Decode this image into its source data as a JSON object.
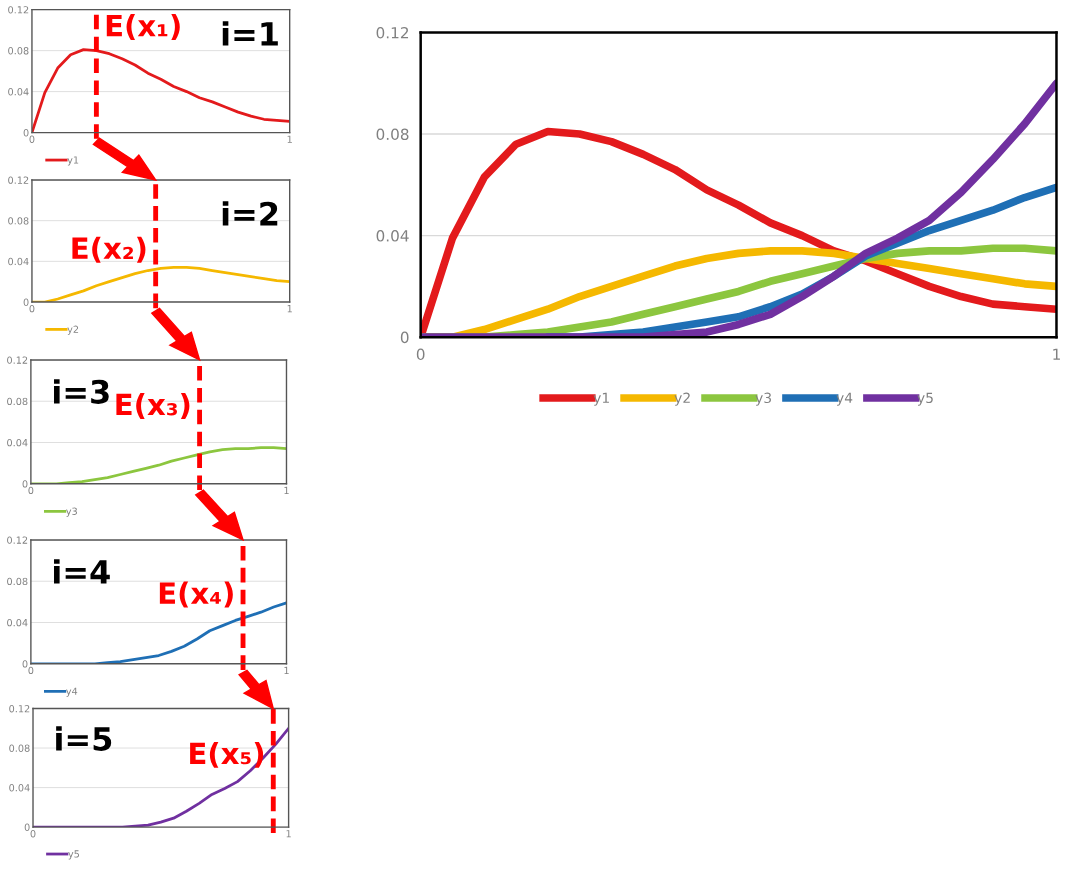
{
  "chart_data": [
    {
      "type": "line",
      "x": [
        0,
        0.05,
        0.1,
        0.15,
        0.2,
        0.25,
        0.3,
        0.35,
        0.4,
        0.45,
        0.5,
        0.55,
        0.6,
        0.65,
        0.7,
        0.75,
        0.8,
        0.85,
        0.9,
        0.95,
        1
      ],
      "xlim": [
        0,
        1
      ],
      "xticks": [
        0,
        1
      ],
      "ylim": [
        0,
        0.12
      ],
      "yticks": [
        0,
        0.04,
        0.08,
        0.12
      ],
      "grid": "y",
      "legend": "bottom",
      "annotations": [
        "i=1"
      ],
      "series": [
        {
          "name": "y1",
          "color": "#e31a1c",
          "values": [
            0,
            0.039,
            0.063,
            0.076,
            0.081,
            0.08,
            0.077,
            0.072,
            0.066,
            0.058,
            0.052,
            0.045,
            0.04,
            0.034,
            0.03,
            0.025,
            0.02,
            0.016,
            0.013,
            0.012,
            0.011
          ]
        }
      ],
      "ref_lines": [
        {
          "axis": "x",
          "value": 0.25,
          "label": "E(x₁)",
          "color": "#ff0000",
          "line_style": "dashed"
        }
      ]
    },
    {
      "type": "line",
      "x": [
        0,
        0.05,
        0.1,
        0.15,
        0.2,
        0.25,
        0.3,
        0.35,
        0.4,
        0.45,
        0.5,
        0.55,
        0.6,
        0.65,
        0.7,
        0.75,
        0.8,
        0.85,
        0.9,
        0.95,
        1
      ],
      "xlim": [
        0,
        1
      ],
      "xticks": [
        0,
        1
      ],
      "ylim": [
        0,
        0.12
      ],
      "yticks": [
        0,
        0.04,
        0.08,
        0.12
      ],
      "grid": "y",
      "legend": "bottom",
      "annotations": [
        "i=2"
      ],
      "series": [
        {
          "name": "y2",
          "color": "#f5b800",
          "values": [
            0,
            0,
            0.003,
            0.007,
            0.011,
            0.016,
            0.02,
            0.024,
            0.028,
            0.031,
            0.033,
            0.034,
            0.034,
            0.033,
            0.031,
            0.029,
            0.027,
            0.025,
            0.023,
            0.021,
            0.02
          ]
        }
      ],
      "ref_lines": [
        {
          "axis": "x",
          "value": 0.48,
          "label": "E(x₂)",
          "color": "#ff0000",
          "line_style": "dashed"
        }
      ]
    },
    {
      "type": "line",
      "x": [
        0,
        0.05,
        0.1,
        0.15,
        0.2,
        0.25,
        0.3,
        0.35,
        0.4,
        0.45,
        0.5,
        0.55,
        0.6,
        0.65,
        0.7,
        0.75,
        0.8,
        0.85,
        0.9,
        0.95,
        1
      ],
      "xlim": [
        0,
        1
      ],
      "xticks": [
        0,
        1
      ],
      "ylim": [
        0,
        0.12
      ],
      "yticks": [
        0,
        0.04,
        0.08,
        0.12
      ],
      "grid": "y",
      "legend": "bottom",
      "annotations": [
        "i=3"
      ],
      "series": [
        {
          "name": "y3",
          "color": "#8cc63f",
          "values": [
            0,
            0,
            0,
            0.001,
            0.002,
            0.004,
            0.006,
            0.009,
            0.012,
            0.015,
            0.018,
            0.022,
            0.025,
            0.028,
            0.031,
            0.033,
            0.034,
            0.034,
            0.035,
            0.035,
            0.034
          ]
        }
      ],
      "ref_lines": [
        {
          "axis": "x",
          "value": 0.66,
          "label": "E(x₃)",
          "color": "#ff0000",
          "line_style": "dashed"
        }
      ]
    },
    {
      "type": "line",
      "x": [
        0,
        0.05,
        0.1,
        0.15,
        0.2,
        0.25,
        0.3,
        0.35,
        0.4,
        0.45,
        0.5,
        0.55,
        0.6,
        0.65,
        0.7,
        0.75,
        0.8,
        0.85,
        0.9,
        0.95,
        1
      ],
      "xlim": [
        0,
        1
      ],
      "xticks": [
        0,
        1
      ],
      "ylim": [
        0,
        0.12
      ],
      "yticks": [
        0,
        0.04,
        0.08,
        0.12
      ],
      "grid": "y",
      "legend": "bottom",
      "annotations": [
        "i=4"
      ],
      "series": [
        {
          "name": "y4",
          "color": "#1f6fb5",
          "values": [
            0,
            0,
            0,
            0,
            0,
            0,
            0.001,
            0.002,
            0.004,
            0.006,
            0.008,
            0.012,
            0.017,
            0.024,
            0.032,
            0.037,
            0.042,
            0.046,
            0.05,
            0.055,
            0.059
          ]
        }
      ],
      "ref_lines": [
        {
          "axis": "x",
          "value": 0.83,
          "label": "E(x₄)",
          "color": "#ff0000",
          "line_style": "dashed"
        }
      ]
    },
    {
      "type": "line",
      "x": [
        0,
        0.05,
        0.1,
        0.15,
        0.2,
        0.25,
        0.3,
        0.35,
        0.4,
        0.45,
        0.5,
        0.55,
        0.6,
        0.65,
        0.7,
        0.75,
        0.8,
        0.85,
        0.9,
        0.95,
        1
      ],
      "xlim": [
        0,
        1
      ],
      "xticks": [
        0,
        1
      ],
      "ylim": [
        0,
        0.12
      ],
      "yticks": [
        0,
        0.04,
        0.08,
        0.12
      ],
      "grid": "y",
      "legend": "bottom",
      "annotations": [
        "i=5"
      ],
      "series": [
        {
          "name": "y5",
          "color": "#7030a0",
          "values": [
            0,
            0,
            0,
            0,
            0,
            0,
            0,
            0,
            0.001,
            0.002,
            0.005,
            0.009,
            0.016,
            0.024,
            0.033,
            0.039,
            0.046,
            0.057,
            0.07,
            0.084,
            0.1
          ]
        }
      ],
      "ref_lines": [
        {
          "axis": "x",
          "value": 0.94,
          "label": "E(x₅)",
          "color": "#ff0000",
          "line_style": "dashed"
        }
      ]
    },
    {
      "type": "line",
      "x": [
        0,
        0.05,
        0.1,
        0.15,
        0.2,
        0.25,
        0.3,
        0.35,
        0.4,
        0.45,
        0.5,
        0.55,
        0.6,
        0.65,
        0.7,
        0.75,
        0.8,
        0.85,
        0.9,
        0.95,
        1
      ],
      "xlim": [
        0,
        1
      ],
      "xticks": [
        0,
        1
      ],
      "ylim": [
        0,
        0.12
      ],
      "yticks": [
        0,
        0.04,
        0.08,
        0.12
      ],
      "grid": "y",
      "legend": "bottom",
      "series": [
        {
          "name": "y1",
          "color": "#e31a1c",
          "values": [
            0,
            0.039,
            0.063,
            0.076,
            0.081,
            0.08,
            0.077,
            0.072,
            0.066,
            0.058,
            0.052,
            0.045,
            0.04,
            0.034,
            0.03,
            0.025,
            0.02,
            0.016,
            0.013,
            0.012,
            0.011
          ]
        },
        {
          "name": "y2",
          "color": "#f5b800",
          "values": [
            0,
            0,
            0.003,
            0.007,
            0.011,
            0.016,
            0.02,
            0.024,
            0.028,
            0.031,
            0.033,
            0.034,
            0.034,
            0.033,
            0.031,
            0.029,
            0.027,
            0.025,
            0.023,
            0.021,
            0.02
          ]
        },
        {
          "name": "y3",
          "color": "#8cc63f",
          "values": [
            0,
            0,
            0,
            0.001,
            0.002,
            0.004,
            0.006,
            0.009,
            0.012,
            0.015,
            0.018,
            0.022,
            0.025,
            0.028,
            0.031,
            0.033,
            0.034,
            0.034,
            0.035,
            0.035,
            0.034
          ]
        },
        {
          "name": "y4",
          "color": "#1f6fb5",
          "values": [
            null,
            null,
            null,
            null,
            0,
            0,
            0.001,
            0.002,
            0.004,
            0.006,
            0.008,
            0.012,
            0.017,
            0.024,
            0.032,
            0.037,
            0.042,
            0.046,
            0.05,
            0.055,
            0.059
          ]
        },
        {
          "name": "y5",
          "color": "#7030a0",
          "values": [
            0,
            0,
            0,
            0,
            0,
            0,
            0,
            0,
            0.001,
            0.002,
            0.005,
            0.009,
            0.016,
            0.024,
            0.033,
            0.039,
            0.046,
            0.057,
            0.07,
            0.084,
            0.1
          ]
        }
      ]
    }
  ]
}
